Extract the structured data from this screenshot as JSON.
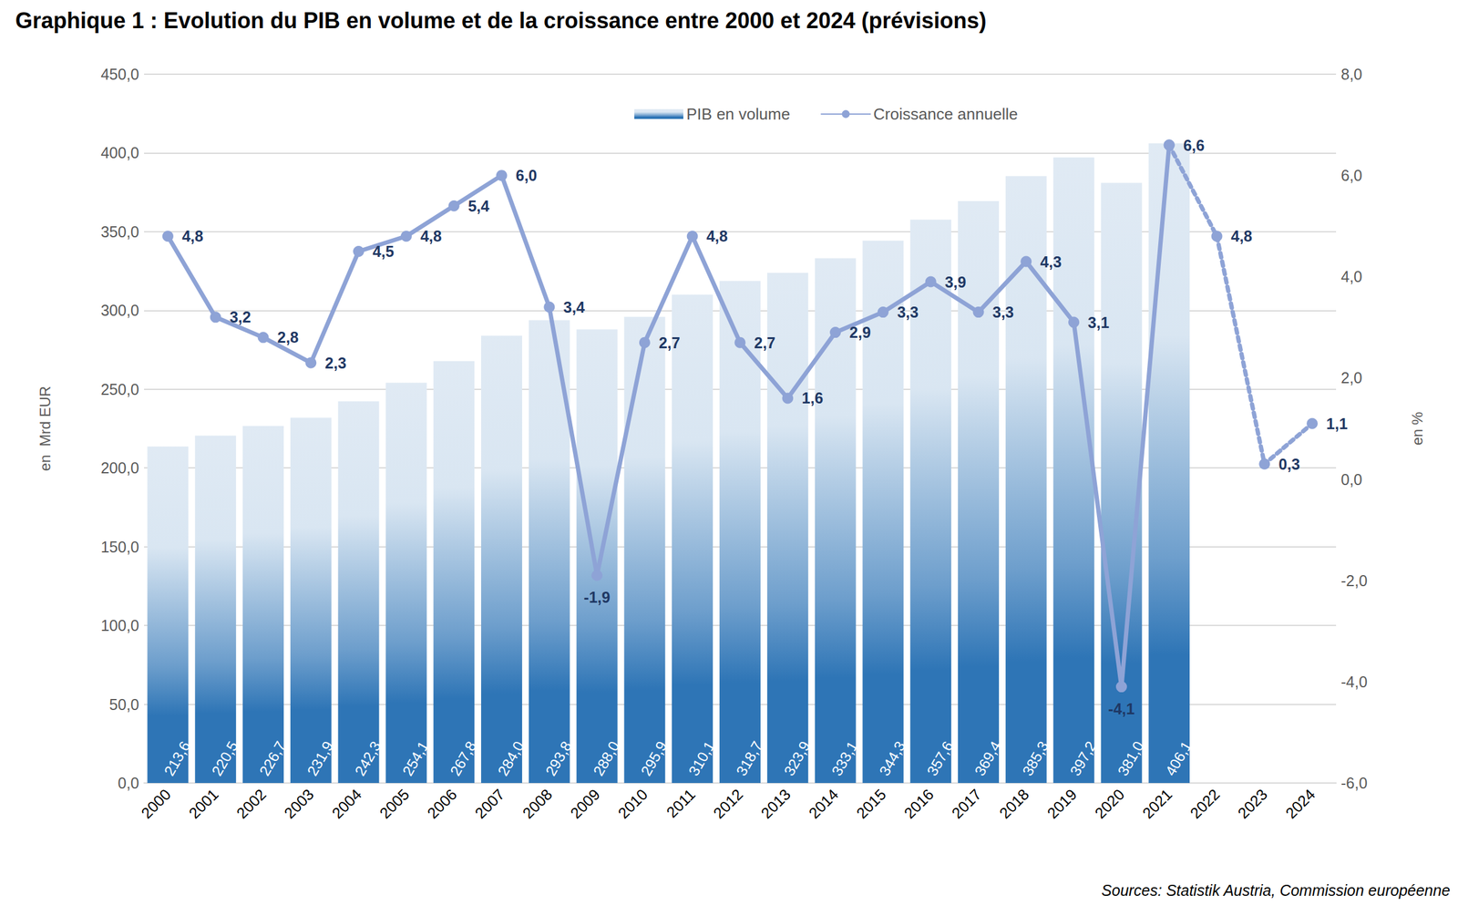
{
  "chart_data": {
    "type": "bar",
    "title": "Graphique 1 : Evolution du PIB en volume et de la croissance entre 2000 et 2024 (prévisions)",
    "source": "Sources: Statistik Austria, Commission européenne",
    "y_label": "en  Mrd EUR",
    "y2_label": "en %",
    "categories": [
      "2000",
      "2001",
      "2002",
      "2003",
      "2004",
      "2005",
      "2006",
      "2007",
      "2008",
      "2009",
      "2010",
      "2011",
      "2012",
      "2013",
      "2014",
      "2015",
      "2016",
      "2017",
      "2018",
      "2019",
      "2020",
      "2021",
      "2022",
      "2023",
      "2024"
    ],
    "ylim": [
      0,
      450
    ],
    "yticks": [
      {
        "value": 0,
        "label": "0,0"
      },
      {
        "value": 50,
        "label": "50,0"
      },
      {
        "value": 100,
        "label": "100,0"
      },
      {
        "value": 150,
        "label": "150,0"
      },
      {
        "value": 200,
        "label": "200,0"
      },
      {
        "value": 250,
        "label": "250,0"
      },
      {
        "value": 300,
        "label": "300,0"
      },
      {
        "value": 350,
        "label": "350,0"
      },
      {
        "value": 400,
        "label": "400,0"
      },
      {
        "value": 450,
        "label": "450,0"
      }
    ],
    "y2lim": [
      -6,
      8
    ],
    "y2ticks": [
      {
        "value": -6,
        "label": "-6,0"
      },
      {
        "value": -4,
        "label": "-4,0"
      },
      {
        "value": -2,
        "label": "-2,0"
      },
      {
        "value": 0,
        "label": "0,0"
      },
      {
        "value": 2,
        "label": "2,0"
      },
      {
        "value": 4,
        "label": "4,0"
      },
      {
        "value": 6,
        "label": "6,0"
      },
      {
        "value": 8,
        "label": "8,0"
      }
    ],
    "grid": true,
    "legend": "top",
    "data_labels": true,
    "series": [
      {
        "name": "PIB en volume",
        "type": "bar",
        "color": "#2e75b6",
        "values": [
          213.6,
          220.5,
          226.7,
          231.9,
          242.3,
          254.1,
          267.8,
          284.0,
          293.8,
          288.0,
          295.9,
          310.1,
          318.7,
          323.9,
          333.1,
          344.3,
          357.6,
          369.4,
          385.3,
          397.2,
          381.0,
          406.1,
          null,
          null,
          null
        ],
        "value_labels": [
          "213,6",
          "220,5",
          "226,7",
          "231,9",
          "242,3",
          "254,1",
          "267,8",
          "284,0",
          "293,8",
          "288,0",
          "295,9",
          "310,1",
          "318,7",
          "323,9",
          "333,1",
          "344,3",
          "357,6",
          "369,4",
          "385,3",
          "397,2",
          "381,0",
          "406,1",
          null,
          null,
          null
        ]
      },
      {
        "name": "Croissance annuelle",
        "type": "line",
        "axis": "y2",
        "color": "#8ea3d6",
        "marker": "circle",
        "line_style": "solid",
        "values": [
          4.8,
          3.2,
          2.8,
          2.3,
          4.5,
          4.8,
          5.4,
          6.0,
          3.4,
          -1.9,
          2.7,
          4.8,
          2.7,
          1.6,
          2.9,
          3.3,
          3.9,
          3.3,
          4.3,
          3.1,
          -4.1,
          6.6,
          null,
          null,
          null
        ],
        "value_labels": [
          "4,8",
          "3,2",
          "2,8",
          "2,3",
          "4,5",
          "4,8",
          "5,4",
          "6,0",
          "3,4",
          "-1,9",
          "2,7",
          "4,8",
          "2,7",
          "1,6",
          "2,9",
          "3,3",
          "3,9",
          "3,3",
          "4,3",
          "3,1",
          "-4,1",
          "6,6",
          null,
          null,
          null
        ]
      },
      {
        "type": "line",
        "axis": "y2",
        "color": "#8ea3d6",
        "marker": "circle",
        "line_style": "dotted",
        "values": [
          null,
          null,
          null,
          null,
          null,
          null,
          null,
          null,
          null,
          null,
          null,
          null,
          null,
          null,
          null,
          null,
          null,
          null,
          null,
          null,
          null,
          6.6,
          4.8,
          0.3,
          1.1
        ],
        "value_labels": [
          null,
          null,
          null,
          null,
          null,
          null,
          null,
          null,
          null,
          null,
          null,
          null,
          null,
          null,
          null,
          null,
          null,
          null,
          null,
          null,
          null,
          "6,6",
          "4,8",
          "0,3",
          "1,1"
        ]
      }
    ]
  }
}
